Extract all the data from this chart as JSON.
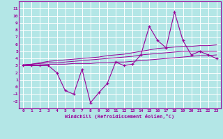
{
  "x": [
    0,
    1,
    2,
    3,
    4,
    5,
    6,
    7,
    8,
    9,
    10,
    11,
    12,
    13,
    14,
    15,
    16,
    17,
    18,
    19,
    20,
    21,
    22,
    23
  ],
  "windchill": [
    3.0,
    3.0,
    3.0,
    3.0,
    2.0,
    -0.5,
    -1.0,
    2.5,
    -2.2,
    -0.8,
    0.5,
    3.5,
    3.0,
    3.2,
    4.5,
    8.5,
    6.5,
    5.5,
    10.5,
    6.5,
    4.5,
    5.0,
    4.5,
    4.0
  ],
  "trend_low": [
    3.1,
    3.1,
    3.1,
    3.2,
    3.2,
    3.2,
    3.3,
    3.3,
    3.3,
    3.4,
    3.4,
    3.5,
    3.5,
    3.6,
    3.7,
    3.8,
    3.9,
    4.0,
    4.1,
    4.2,
    4.3,
    4.4,
    4.4,
    4.5
  ],
  "trend_mid": [
    3.1,
    3.2,
    3.3,
    3.4,
    3.4,
    3.5,
    3.6,
    3.7,
    3.8,
    3.9,
    4.0,
    4.1,
    4.2,
    4.3,
    4.5,
    4.6,
    4.7,
    4.8,
    4.9,
    5.0,
    5.0,
    5.0,
    5.0,
    5.0
  ],
  "trend_high": [
    3.1,
    3.2,
    3.4,
    3.6,
    3.7,
    3.8,
    3.9,
    4.0,
    4.1,
    4.2,
    4.4,
    4.5,
    4.6,
    4.8,
    5.0,
    5.2,
    5.4,
    5.5,
    5.6,
    5.7,
    5.7,
    5.8,
    5.8,
    5.9
  ],
  "line_color": "#990099",
  "bg_color": "#b3e6e6",
  "grid_color": "#ffffff",
  "xlabel": "Windchill (Refroidissement éolien,°C)",
  "ylim": [
    -3,
    12
  ],
  "xlim": [
    -0.5,
    23.5
  ],
  "yticks": [
    -2,
    -1,
    0,
    1,
    2,
    3,
    4,
    5,
    6,
    7,
    8,
    9,
    10,
    11
  ],
  "xticks": [
    0,
    1,
    2,
    3,
    4,
    5,
    6,
    7,
    8,
    9,
    10,
    11,
    12,
    13,
    14,
    15,
    16,
    17,
    18,
    19,
    20,
    21,
    22,
    23
  ]
}
